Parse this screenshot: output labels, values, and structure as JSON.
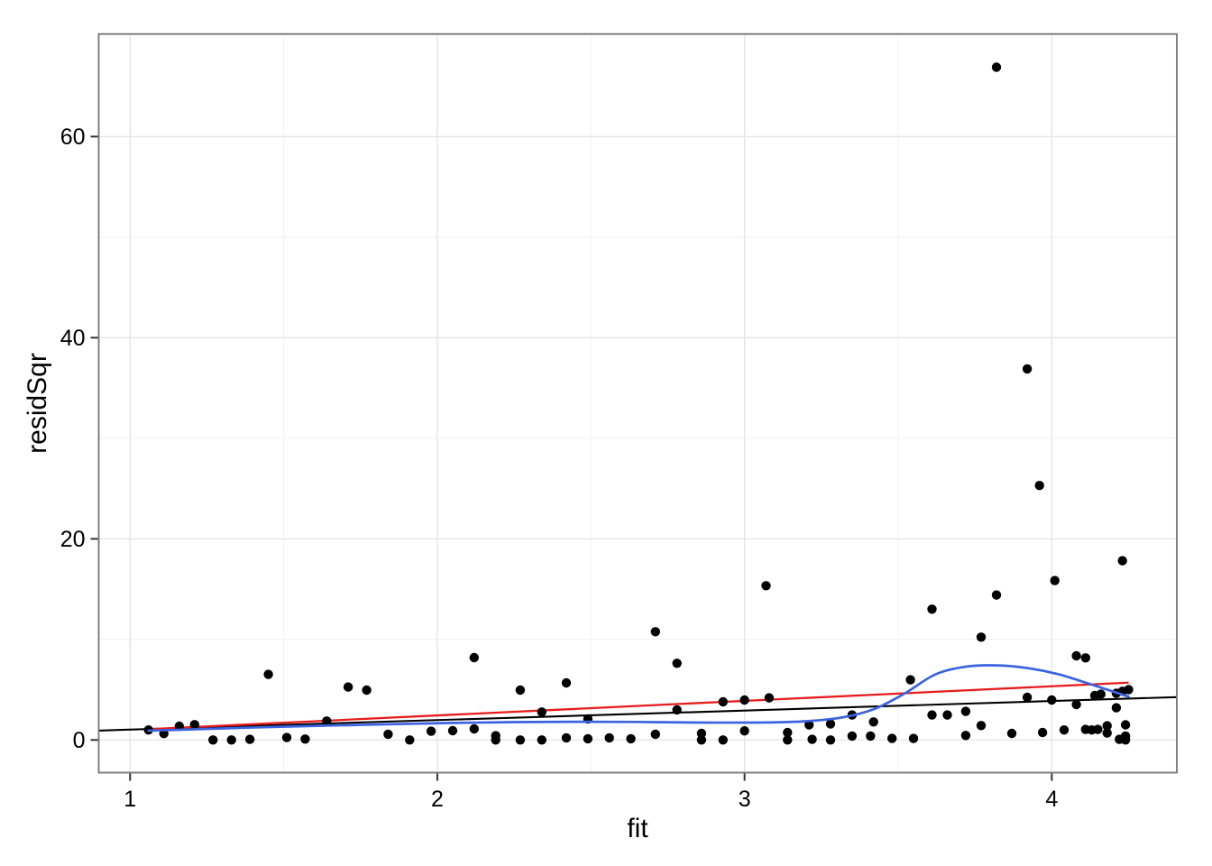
{
  "chart_data": {
    "type": "scatter",
    "title": "",
    "xlabel": "fit",
    "ylabel": "residSqr",
    "legend": "none",
    "grid": "major+minor",
    "xlim": [
      0.898,
      4.407
    ],
    "ylim": [
      -3.25,
      70.2
    ],
    "x_ticks": [
      {
        "value": 1,
        "label": "1"
      },
      {
        "value": 2,
        "label": "2"
      },
      {
        "value": 3,
        "label": "3"
      },
      {
        "value": 4,
        "label": "4"
      }
    ],
    "y_ticks": [
      {
        "value": 0,
        "label": "0"
      },
      {
        "value": 20,
        "label": "20"
      },
      {
        "value": 40,
        "label": "40"
      },
      {
        "value": 60,
        "label": "60"
      }
    ],
    "x_minor_gridlines": [
      1.5,
      2.5,
      3.5
    ],
    "y_minor_gridlines": [
      10,
      30,
      50
    ],
    "points": [
      [
        1.06,
        0.99
      ],
      [
        1.11,
        0.63
      ],
      [
        1.16,
        1.37
      ],
      [
        1.21,
        1.52
      ],
      [
        1.27,
        0
      ],
      [
        1.33,
        0
      ],
      [
        1.39,
        0.06
      ],
      [
        1.45,
        6.52
      ],
      [
        1.51,
        0.24
      ],
      [
        1.57,
        0.09
      ],
      [
        1.64,
        1.88
      ],
      [
        1.71,
        5.26
      ],
      [
        1.77,
        4.96
      ],
      [
        1.84,
        0.57
      ],
      [
        1.91,
        0
      ],
      [
        1.98,
        0.87
      ],
      [
        2.05,
        0.92
      ],
      [
        2.12,
        8.19
      ],
      [
        2.12,
        1.1
      ],
      [
        2.19,
        0.42
      ],
      [
        2.19,
        0
      ],
      [
        2.27,
        4.96
      ],
      [
        2.27,
        0
      ],
      [
        2.34,
        2.78
      ],
      [
        2.34,
        0
      ],
      [
        2.42,
        5.68
      ],
      [
        2.42,
        0.21
      ],
      [
        2.49,
        2.09
      ],
      [
        2.49,
        0.12
      ],
      [
        2.56,
        0.21
      ],
      [
        2.63,
        0.12
      ],
      [
        2.71,
        0.57
      ],
      [
        2.71,
        10.76
      ],
      [
        2.78,
        7.62
      ],
      [
        2.78,
        2.99
      ],
      [
        2.86,
        0.65
      ],
      [
        2.86,
        0
      ],
      [
        2.93,
        0
      ],
      [
        2.93,
        3.79
      ],
      [
        3.0,
        3.97
      ],
      [
        3.0,
        0.9
      ],
      [
        3.07,
        15.34
      ],
      [
        3.08,
        4.19
      ],
      [
        3.14,
        0.74
      ],
      [
        3.14,
        0
      ],
      [
        3.21,
        1.5
      ],
      [
        3.22,
        0.06
      ],
      [
        3.28,
        1.59
      ],
      [
        3.28,
        0
      ],
      [
        3.35,
        2.48
      ],
      [
        3.35,
        0.39
      ],
      [
        3.42,
        1.79
      ],
      [
        3.41,
        0.39
      ],
      [
        3.48,
        0.15
      ],
      [
        3.54,
        5.98
      ],
      [
        3.55,
        0.15
      ],
      [
        3.61,
        13.0
      ],
      [
        3.61,
        2.48
      ],
      [
        3.66,
        2.48
      ],
      [
        3.72,
        2.84
      ],
      [
        3.72,
        0.45
      ],
      [
        3.77,
        1.43
      ],
      [
        3.77,
        10.22
      ],
      [
        3.82,
        14.41
      ],
      [
        3.82,
        66.9
      ],
      [
        3.87,
        0.65
      ],
      [
        3.92,
        36.9
      ],
      [
        3.92,
        4.24
      ],
      [
        3.96,
        25.3
      ],
      [
        3.97,
        0.74
      ],
      [
        4.0,
        3.97
      ],
      [
        4.01,
        15.85
      ],
      [
        4.04,
        0.99
      ],
      [
        4.08,
        3.52
      ],
      [
        4.08,
        8.37
      ],
      [
        4.11,
        8.16
      ],
      [
        4.11,
        1.05
      ],
      [
        4.13,
        0.99
      ],
      [
        4.14,
        4.42
      ],
      [
        4.15,
        1.05
      ],
      [
        4.16,
        4.55
      ],
      [
        4.18,
        1.41
      ],
      [
        4.18,
        0.69
      ],
      [
        4.21,
        4.64
      ],
      [
        4.21,
        3.2
      ],
      [
        4.22,
        0.06
      ],
      [
        4.23,
        4.84
      ],
      [
        4.23,
        17.82
      ],
      [
        4.24,
        1.5
      ],
      [
        4.24,
        0
      ],
      [
        4.24,
        0.39
      ],
      [
        4.25,
        5.0
      ]
    ],
    "reference_line_black": {
      "x1": 0.898,
      "y1": 0.93,
      "x2": 4.407,
      "y2": 4.26,
      "color": "#000000"
    },
    "regression_line_red": {
      "x1": 1.056,
      "y1": 1.07,
      "x2": 4.25,
      "y2": 5.7,
      "color": "#E81C1C"
    },
    "loess_curve_blue": {
      "color": "#3B63E0",
      "points": [
        [
          1.06,
          0.92
        ],
        [
          1.25,
          1.1
        ],
        [
          1.45,
          1.28
        ],
        [
          1.65,
          1.43
        ],
        [
          1.85,
          1.57
        ],
        [
          2.05,
          1.69
        ],
        [
          2.25,
          1.77
        ],
        [
          2.45,
          1.81
        ],
        [
          2.65,
          1.79
        ],
        [
          2.85,
          1.73
        ],
        [
          3.05,
          1.73
        ],
        [
          3.2,
          1.86
        ],
        [
          3.32,
          2.25
        ],
        [
          3.42,
          3.05
        ],
        [
          3.52,
          4.6
        ],
        [
          3.62,
          6.5
        ],
        [
          3.72,
          7.28
        ],
        [
          3.82,
          7.42
        ],
        [
          3.92,
          7.15
        ],
        [
          4.02,
          6.55
        ],
        [
          4.12,
          5.6
        ],
        [
          4.25,
          4.3
        ]
      ]
    },
    "colors": {
      "point": "#000000",
      "panel_background": "#FFFFFF",
      "figure_background": "#FFFFFF",
      "panel_border": "#7A7A7A",
      "grid_major": "#E5E5E5",
      "grid_minor": "#F1F1F1",
      "tick_mark": "#333333",
      "tick_label": "#000000",
      "axis_title": "#000000"
    }
  }
}
